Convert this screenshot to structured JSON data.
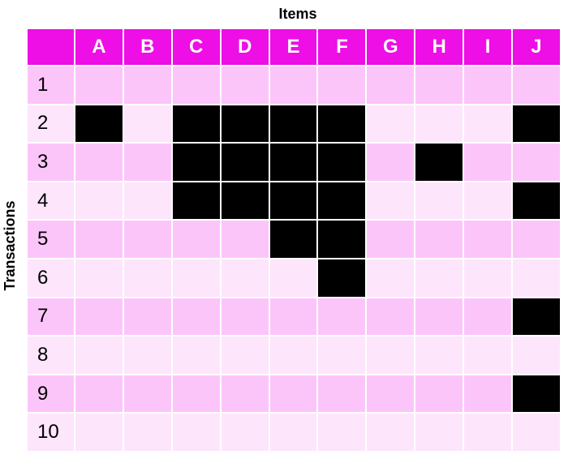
{
  "x_axis_title": "Items",
  "y_axis_title": "Transactions",
  "colors": {
    "header": "#ee0ee6",
    "row_odd": "#fcc5fa",
    "row_even": "#fde5fc",
    "filled": "#000000"
  },
  "items": [
    "A",
    "B",
    "C",
    "D",
    "E",
    "F",
    "G",
    "H",
    "I",
    "J"
  ],
  "transactions": [
    {
      "label": "1",
      "items": []
    },
    {
      "label": "2",
      "items": [
        "A",
        "C",
        "D",
        "E",
        "F",
        "J"
      ]
    },
    {
      "label": "3",
      "items": [
        "C",
        "D",
        "E",
        "F",
        "H"
      ]
    },
    {
      "label": "4",
      "items": [
        "C",
        "D",
        "E",
        "F",
        "J"
      ]
    },
    {
      "label": "5",
      "items": [
        "E",
        "F"
      ]
    },
    {
      "label": "6",
      "items": [
        "F"
      ]
    },
    {
      "label": "7",
      "items": [
        "J"
      ]
    },
    {
      "label": "8",
      "items": []
    },
    {
      "label": "9",
      "items": [
        "J"
      ]
    },
    {
      "label": "10",
      "items": []
    }
  ]
}
